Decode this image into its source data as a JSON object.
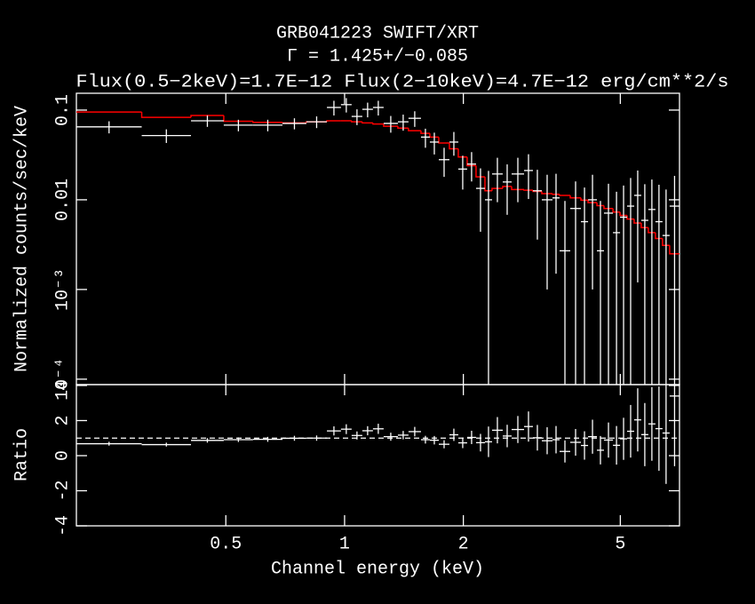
{
  "chart_data": [
    {
      "type": "errorbar",
      "title": "GRB041223 SWIFT/XRT",
      "subtitle": [
        "Γ = 1.425+/−0.085",
        "Flux(0.5−2keV)=1.7E−12 Flux(2−10keV)=4.7E−12 erg/cm**2/s"
      ],
      "ylabel": "Normalized counts/sec/keV",
      "xscale": "log",
      "yscale": "log",
      "xlim": [
        0.209,
        7.063
      ],
      "ylim": [
        8.7e-05,
        0.154
      ],
      "xticks": [
        0.5,
        1,
        2,
        5
      ],
      "yticks": [
        0.1,
        0.01,
        {
          "value": 0.001,
          "label": "10⁻³"
        },
        {
          "value": 0.0001,
          "label": "10⁻⁴"
        }
      ],
      "bins": [
        0.209,
        0.306,
        0.408,
        0.494,
        0.586,
        0.696,
        0.8,
        0.902,
        0.979,
        1.042,
        1.109,
        1.18,
        1.256,
        1.365,
        1.452,
        1.562,
        1.645,
        1.733,
        1.844,
        1.942,
        2.045,
        2.154,
        2.269,
        2.365,
        2.517,
        2.651,
        2.851,
        3.002,
        3.162,
        3.365,
        3.508,
        3.733,
        3.973,
        4.142,
        4.362,
        4.545,
        4.79,
        4.992,
        5.202,
        5.421,
        5.65,
        5.888,
        6.137,
        6.396,
        6.668,
        7.063
      ],
      "data": {
        "color": "#ffffff",
        "values": [
          0.065,
          0.052,
          0.076,
          0.068,
          0.068,
          0.071,
          0.074,
          0.107,
          0.115,
          0.085,
          0.102,
          0.107,
          0.071,
          0.074,
          0.081,
          0.05,
          0.044,
          0.028,
          0.044,
          0.022,
          0.025,
          0.0134,
          0.01,
          0.0194,
          0.0158,
          0.0194,
          0.0212,
          0.0126,
          0.01,
          0.0105,
          0.0027,
          0.008,
          0.0057,
          0.01,
          0.0027,
          0.0071,
          0.0043,
          0.0064,
          0.0085,
          0.0112,
          0.0059,
          0.0078,
          0.0057,
          0.004,
          0.0085
        ],
        "errors": [
          0.01,
          0.009,
          0.011,
          0.01,
          0.01,
          0.01,
          0.011,
          0.02,
          0.021,
          0.017,
          0.019,
          0.02,
          0.015,
          0.015,
          0.016,
          0.012,
          0.012,
          0.01,
          0.013,
          0.009,
          0.009,
          0.009,
          0.011,
          0.01,
          0.009,
          0.01,
          0.011,
          0.009,
          0.009,
          0.009,
          0.007,
          0.008,
          0.008,
          0.009,
          0.007,
          0.008,
          0.008,
          0.008,
          0.009,
          0.01,
          0.009,
          0.009,
          0.009,
          0.009,
          0.01
        ]
      },
      "model": {
        "color": "#ff0000",
        "values": [
          0.095,
          0.083,
          0.087,
          0.075,
          0.073,
          0.072,
          0.074,
          0.076,
          0.076,
          0.074,
          0.072,
          0.07,
          0.066,
          0.063,
          0.059,
          0.055,
          0.05,
          0.043,
          0.037,
          0.03,
          0.024,
          0.018,
          0.0126,
          0.0134,
          0.0141,
          0.013,
          0.0128,
          0.0124,
          0.0117,
          0.0115,
          0.0112,
          0.0105,
          0.0099,
          0.0093,
          0.0086,
          0.008,
          0.0073,
          0.0067,
          0.0061,
          0.0055,
          0.0049,
          0.0043,
          0.0037,
          0.0031,
          0.0025
        ]
      }
    },
    {
      "type": "errorbar",
      "ylabel": "Ratio",
      "xlabel": "Channel energy (keV)",
      "xscale": "log",
      "yscale": "linear",
      "xlim": [
        0.209,
        7.063
      ],
      "ylim": [
        -4,
        4.05
      ],
      "xticks": [
        0.5,
        1,
        2,
        5
      ],
      "yticks": [
        -4,
        -2,
        0,
        2,
        4
      ],
      "reference": 1,
      "bins": [
        0.209,
        0.306,
        0.408,
        0.494,
        0.586,
        0.696,
        0.8,
        0.902,
        0.979,
        1.042,
        1.109,
        1.18,
        1.256,
        1.365,
        1.452,
        1.562,
        1.645,
        1.733,
        1.844,
        1.942,
        2.045,
        2.154,
        2.269,
        2.365,
        2.517,
        2.651,
        2.851,
        3.002,
        3.162,
        3.365,
        3.508,
        3.733,
        3.973,
        4.142,
        4.362,
        4.545,
        4.79,
        4.992,
        5.202,
        5.421,
        5.65,
        5.888,
        6.137,
        6.396,
        6.668,
        7.063
      ],
      "data": {
        "color": "#ffffff",
        "values": [
          0.68,
          0.63,
          0.87,
          0.91,
          0.93,
          0.99,
          1.0,
          1.41,
          1.51,
          1.15,
          1.42,
          1.53,
          1.08,
          1.17,
          1.37,
          0.91,
          0.88,
          0.65,
          1.19,
          0.73,
          1.04,
          0.74,
          0.79,
          1.45,
          1.12,
          1.49,
          1.66,
          1.02,
          0.85,
          0.91,
          0.24,
          0.76,
          0.58,
          1.08,
          0.31,
          0.89,
          0.59,
          0.96,
          1.39,
          2.04,
          1.2,
          1.81,
          1.54,
          1.29,
          3.4
        ],
        "errors": [
          0.11,
          0.11,
          0.13,
          0.13,
          0.14,
          0.14,
          0.15,
          0.26,
          0.28,
          0.23,
          0.26,
          0.29,
          0.23,
          0.24,
          0.27,
          0.22,
          0.24,
          0.23,
          0.35,
          0.3,
          0.38,
          0.5,
          0.87,
          0.75,
          0.64,
          0.77,
          0.86,
          0.73,
          0.77,
          0.78,
          0.63,
          0.76,
          0.81,
          0.97,
          0.81,
          1.0,
          1.1,
          1.2,
          1.5,
          1.8,
          1.8,
          2.1,
          2.4,
          2.9,
          4.0
        ]
      }
    }
  ]
}
